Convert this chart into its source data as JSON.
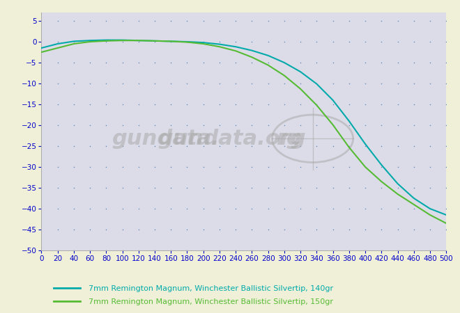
{
  "background_color": "#f0f0d8",
  "plot_bg_color": "#dcdce8",
  "grid_dot_color": "#6688bb",
  "xlim": [
    0,
    500
  ],
  "ylim": [
    -50,
    7
  ],
  "xticks": [
    0,
    20,
    40,
    60,
    80,
    100,
    120,
    140,
    160,
    180,
    200,
    220,
    240,
    260,
    280,
    300,
    320,
    340,
    360,
    380,
    400,
    420,
    440,
    460,
    480,
    500
  ],
  "yticks": [
    5,
    0,
    -5,
    -10,
    -15,
    -20,
    -25,
    -30,
    -35,
    -40,
    -45,
    -50
  ],
  "line1_color": "#00aaaa",
  "line2_color": "#55bb33",
  "line1_label": "7mm Remington Magnum, Winchester Ballistic Silvertip, 140gr",
  "line2_label": "7mm Remington Magnum, Winchester Ballistic Silvertip, 150gr",
  "tick_color": "#0000cc",
  "tick_fontsize": 7.5,
  "legend1_text_color": "#00aaaa",
  "legend2_text_color": "#55bb33",
  "x": [
    0,
    20,
    40,
    60,
    80,
    100,
    120,
    140,
    160,
    180,
    200,
    220,
    240,
    260,
    280,
    300,
    320,
    340,
    360,
    380,
    400,
    420,
    440,
    460,
    480,
    500
  ],
  "y_140": [
    -1.5,
    -0.5,
    0.1,
    0.3,
    0.4,
    0.4,
    0.3,
    0.2,
    0.1,
    0.0,
    -0.2,
    -0.6,
    -1.2,
    -2.1,
    -3.3,
    -5.0,
    -7.2,
    -10.1,
    -14.0,
    -19.0,
    -24.5,
    -29.5,
    -34.0,
    -37.5,
    -40.0,
    -41.5
  ],
  "y_150": [
    -2.5,
    -1.5,
    -0.5,
    0.0,
    0.2,
    0.3,
    0.3,
    0.2,
    0.1,
    -0.1,
    -0.5,
    -1.2,
    -2.2,
    -3.7,
    -5.6,
    -8.1,
    -11.3,
    -15.2,
    -19.9,
    -25.3,
    -30.0,
    -33.5,
    -36.5,
    -39.0,
    -41.5,
    -43.5
  ],
  "watermark_color": "#aaaaaa",
  "watermark_alpha": 0.55
}
